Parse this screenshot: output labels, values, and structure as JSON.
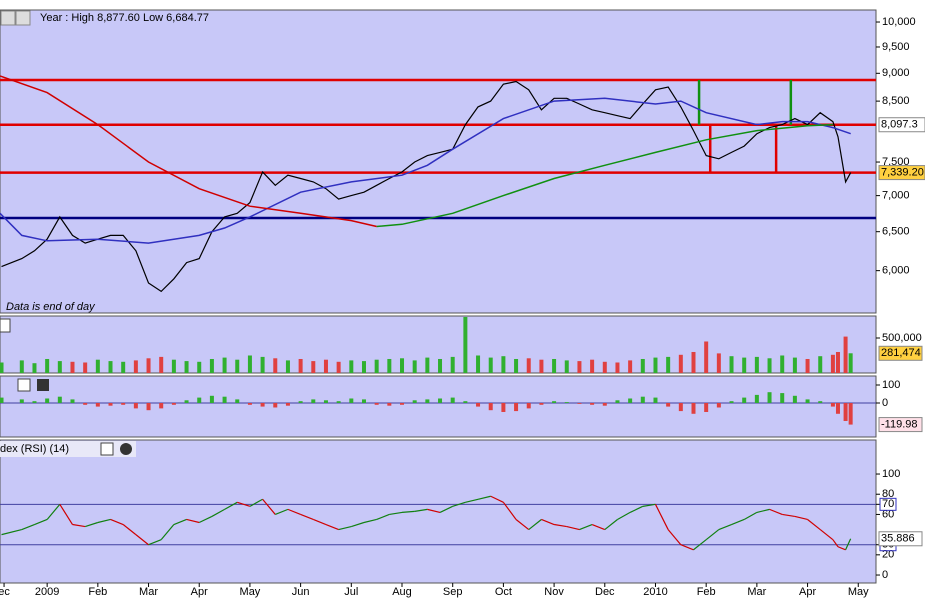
{
  "chart_data": [
    {
      "type": "line",
      "title": "Year : High 8,877.60 Low 6,684.77",
      "annotation": "Data is end of day",
      "log_scale": true,
      "xlim": [
        -0.93,
        16.35
      ],
      "ylim": [
        5500,
        10250
      ],
      "yticks": [
        {
          "value": 6000,
          "label": "6,000"
        },
        {
          "value": 6500,
          "label": "6,500"
        },
        {
          "value": 7000,
          "label": "7,000"
        },
        {
          "value": 7500,
          "label": "7,500"
        },
        {
          "value": 8500,
          "label": "8,500"
        },
        {
          "value": 9000,
          "label": "9,000"
        },
        {
          "value": 9500,
          "label": "9,500"
        },
        {
          "value": 10000,
          "label": "10,000"
        }
      ],
      "series": [
        {
          "color": "#000000",
          "x": [
            -0.9,
            -0.5,
            -0.25,
            0,
            0.25,
            0.5,
            0.75,
            1,
            1.25,
            1.5,
            1.75,
            2,
            2.25,
            2.5,
            2.75,
            3,
            3.25,
            3.5,
            3.75,
            4,
            4.25,
            4.5,
            4.75,
            5,
            5.25,
            5.5,
            5.75,
            6,
            6.25,
            6.5,
            6.75,
            7,
            7.25,
            7.5,
            7.75,
            8,
            8.25,
            8.5,
            8.75,
            9,
            9.25,
            9.5,
            9.75,
            10,
            10.25,
            10.5,
            10.75,
            11,
            11.25,
            11.5,
            11.75,
            12,
            12.25,
            12.5,
            12.75,
            13,
            13.25,
            13.5,
            13.75,
            14,
            14.25,
            14.5,
            14.75,
            15,
            15.25,
            15.5,
            15.6,
            15.75,
            15.85
          ],
          "values": [
            6050,
            6150,
            6250,
            6400,
            6700,
            6450,
            6350,
            6400,
            6450,
            6450,
            6250,
            5850,
            5750,
            5900,
            6100,
            6150,
            6500,
            6700,
            6750,
            6900,
            7350,
            7150,
            7300,
            7250,
            7200,
            7100,
            6950,
            7000,
            7050,
            7150,
            7250,
            7350,
            7500,
            7600,
            7650,
            7700,
            8100,
            8400,
            8500,
            8800,
            8850,
            8700,
            8350,
            8550,
            8550,
            8450,
            8350,
            8300,
            8250,
            8200,
            8450,
            8700,
            8750,
            8400,
            8000,
            7600,
            7550,
            7650,
            7750,
            7950,
            8050,
            8100,
            8200,
            8100,
            8300,
            8150,
            7900,
            7200,
            7339.2
          ]
        },
        {
          "color": "#3030c0",
          "x": [
            -0.93,
            -0.5,
            0,
            1,
            2,
            3,
            3.5,
            4,
            5,
            6,
            7,
            7.5,
            8,
            9,
            10,
            11,
            12,
            12.5,
            13,
            14,
            14.5,
            15,
            15.5,
            15.85
          ],
          "values": [
            6750,
            6450,
            6380,
            6400,
            6350,
            6450,
            6550,
            6700,
            7050,
            7200,
            7300,
            7450,
            7700,
            8200,
            8500,
            8550,
            8450,
            8500,
            8300,
            8100,
            8150,
            8150,
            8050,
            7950
          ]
        },
        {
          "color": "#d00000",
          "x": [
            -0.93,
            0,
            1,
            2,
            3,
            4,
            5,
            6,
            6.5
          ],
          "values": [
            8950,
            8650,
            8100,
            7500,
            7100,
            6850,
            6750,
            6650,
            6570
          ]
        },
        {
          "color": "#109010",
          "x": [
            6.5,
            7,
            8,
            9,
            10,
            11,
            12,
            13,
            14,
            15,
            15.5
          ],
          "values": [
            6570,
            6600,
            6750,
            7000,
            7250,
            7450,
            7650,
            7850,
            8000,
            8080,
            8100
          ]
        }
      ],
      "levels": [
        {
          "value": 8877.6,
          "color": "#e00000"
        },
        {
          "value": 8097.3,
          "label": "8,097.3",
          "color": "#e00000",
          "label_color": "#3030c0",
          "label_bg": "#ffffff"
        },
        {
          "value": 7339.2,
          "label": "7,339.20",
          "color": "#e00000",
          "label_color": "#000000",
          "label_bg": "#ffd040"
        },
        {
          "value": 6684.77,
          "color": "#000080"
        }
      ],
      "segments": [
        {
          "x": 12.86,
          "y": [
            8877.6,
            8097.3
          ],
          "color": "#109010"
        },
        {
          "x": 13.08,
          "y": [
            8097.3,
            7339.2
          ],
          "color": "#e00000"
        },
        {
          "x": 14.38,
          "y": [
            8097.3,
            7339.2
          ],
          "color": "#e00000"
        },
        {
          "x": 14.67,
          "y": [
            8877.6,
            8097.3
          ],
          "color": "#109010"
        }
      ]
    },
    {
      "type": "bar",
      "xlim": [
        -0.93,
        16.35
      ],
      "ylim": [
        0,
        814000
      ],
      "yticks": [
        {
          "value": 500000,
          "label": "500,000"
        }
      ],
      "up_color": "#30b030",
      "down_color": "#e04040",
      "x": [
        -0.9,
        -0.5,
        -0.25,
        0,
        0.25,
        0.5,
        0.75,
        1,
        1.25,
        1.5,
        1.75,
        2,
        2.25,
        2.5,
        2.75,
        3,
        3.25,
        3.5,
        3.75,
        4,
        4.25,
        4.5,
        4.75,
        5,
        5.25,
        5.5,
        5.75,
        6,
        6.25,
        6.5,
        6.75,
        7,
        7.25,
        7.5,
        7.75,
        8,
        8.25,
        8.5,
        8.75,
        9,
        9.25,
        9.5,
        9.75,
        10,
        10.25,
        10.5,
        10.75,
        11,
        11.25,
        11.5,
        11.75,
        12,
        12.25,
        12.5,
        12.75,
        13,
        13.25,
        13.5,
        13.75,
        14,
        14.25,
        14.5,
        14.75,
        15,
        15.25,
        15.5,
        15.6,
        15.75,
        15.85
      ],
      "values": [
        150000,
        180000,
        140000,
        200000,
        170000,
        160000,
        150000,
        190000,
        170000,
        160000,
        180000,
        210000,
        230000,
        190000,
        170000,
        160000,
        200000,
        220000,
        190000,
        250000,
        230000,
        210000,
        180000,
        200000,
        170000,
        190000,
        160000,
        180000,
        170000,
        190000,
        200000,
        210000,
        180000,
        220000,
        200000,
        230000,
        800000,
        250000,
        220000,
        240000,
        200000,
        210000,
        190000,
        200000,
        180000,
        170000,
        190000,
        160000,
        150000,
        180000,
        200000,
        220000,
        230000,
        260000,
        300000,
        450000,
        280000,
        240000,
        220000,
        230000,
        210000,
        250000,
        220000,
        200000,
        240000,
        260000,
        300000,
        520000,
        281474
      ],
      "last_label": {
        "value": 281474,
        "label": "281,474"
      }
    },
    {
      "type": "bar",
      "xlim": [
        -0.93,
        16.35
      ],
      "ylim": [
        -189,
        150
      ],
      "yticks": [
        100,
        0
      ],
      "up_color": "#30b030",
      "down_color": "#e04040",
      "x": [
        -0.9,
        -0.5,
        -0.25,
        0,
        0.25,
        0.5,
        0.75,
        1,
        1.25,
        1.5,
        1.75,
        2,
        2.25,
        2.5,
        2.75,
        3,
        3.25,
        3.5,
        3.75,
        4,
        4.25,
        4.5,
        4.75,
        5,
        5.25,
        5.5,
        5.75,
        6,
        6.25,
        6.5,
        6.75,
        7,
        7.25,
        7.5,
        7.75,
        8,
        8.25,
        8.5,
        8.75,
        9,
        9.25,
        9.5,
        9.75,
        10,
        10.25,
        10.5,
        10.75,
        11,
        11.25,
        11.5,
        11.75,
        12,
        12.25,
        12.5,
        12.75,
        13,
        13.25,
        13.5,
        13.75,
        14,
        14.25,
        14.5,
        14.75,
        15,
        15.25,
        15.5,
        15.6,
        15.75,
        15.85
      ],
      "values": [
        30,
        20,
        10,
        25,
        35,
        20,
        -10,
        -20,
        -15,
        -10,
        -30,
        -40,
        -30,
        -10,
        15,
        30,
        40,
        35,
        20,
        -10,
        -20,
        -25,
        -15,
        10,
        20,
        15,
        10,
        25,
        20,
        -10,
        -15,
        -10,
        15,
        20,
        25,
        30,
        10,
        -20,
        -40,
        -50,
        -45,
        -30,
        -10,
        10,
        5,
        -5,
        -10,
        -15,
        15,
        25,
        35,
        30,
        -20,
        -45,
        -60,
        -50,
        -25,
        10,
        30,
        45,
        60,
        55,
        40,
        20,
        10,
        -20,
        -60,
        -100,
        -119.98
      ],
      "last_label": {
        "value": -119.98,
        "label": "-119.98"
      }
    },
    {
      "type": "line",
      "title": "dex (RSI) (14)",
      "xlim": [
        -0.93,
        16.35
      ],
      "ylim": [
        -7.9,
        133.7
      ],
      "yticks": [
        0,
        20,
        30,
        60,
        70,
        80,
        100
      ],
      "levels": [
        30,
        70
      ],
      "up_color": "#108010",
      "down_color": "#d00000",
      "x": [
        -0.9,
        -0.5,
        -0.25,
        0,
        0.25,
        0.5,
        0.75,
        1,
        1.25,
        1.5,
        1.75,
        2,
        2.25,
        2.5,
        2.75,
        3,
        3.25,
        3.5,
        3.75,
        4,
        4.25,
        4.5,
        4.75,
        5,
        5.25,
        5.5,
        5.75,
        6,
        6.25,
        6.5,
        6.75,
        7,
        7.25,
        7.5,
        7.75,
        8,
        8.25,
        8.5,
        8.75,
        9,
        9.25,
        9.5,
        9.75,
        10,
        10.25,
        10.5,
        10.75,
        11,
        11.25,
        11.5,
        11.75,
        12,
        12.25,
        12.5,
        12.75,
        13,
        13.25,
        13.5,
        13.75,
        14,
        14.25,
        14.5,
        14.75,
        15,
        15.25,
        15.5,
        15.6,
        15.75,
        15.85
      ],
      "values": [
        40,
        45,
        50,
        55,
        70,
        50,
        48,
        52,
        55,
        50,
        40,
        30,
        35,
        50,
        55,
        52,
        58,
        65,
        72,
        68,
        75,
        60,
        65,
        60,
        55,
        50,
        45,
        48,
        52,
        55,
        60,
        62,
        63,
        65,
        62,
        68,
        72,
        75,
        78,
        72,
        55,
        45,
        55,
        50,
        48,
        45,
        50,
        45,
        55,
        62,
        68,
        70,
        45,
        30,
        25,
        35,
        45,
        50,
        55,
        62,
        65,
        60,
        58,
        55,
        45,
        35,
        28,
        25,
        35.886
      ],
      "last_label": {
        "value": 35.886,
        "label": "35.886"
      },
      "xticks": [
        {
          "value": -0.85,
          "label": "ec"
        },
        {
          "value": 0,
          "label": "2009"
        },
        {
          "value": 1,
          "label": "Feb"
        },
        {
          "value": 2,
          "label": "Mar"
        },
        {
          "value": 3,
          "label": "Apr"
        },
        {
          "value": 4,
          "label": "May"
        },
        {
          "value": 5,
          "label": "Jun"
        },
        {
          "value": 6,
          "label": "Jul"
        },
        {
          "value": 7,
          "label": "Aug"
        },
        {
          "value": 8,
          "label": "Sep"
        },
        {
          "value": 9,
          "label": "Oct"
        },
        {
          "value": 10,
          "label": "Nov"
        },
        {
          "value": 11,
          "label": "Dec"
        },
        {
          "value": 12,
          "label": "2010"
        },
        {
          "value": 13,
          "label": "Feb"
        },
        {
          "value": 14,
          "label": "Mar"
        },
        {
          "value": 15,
          "label": "Apr"
        },
        {
          "value": 16,
          "label": "May"
        }
      ]
    }
  ]
}
